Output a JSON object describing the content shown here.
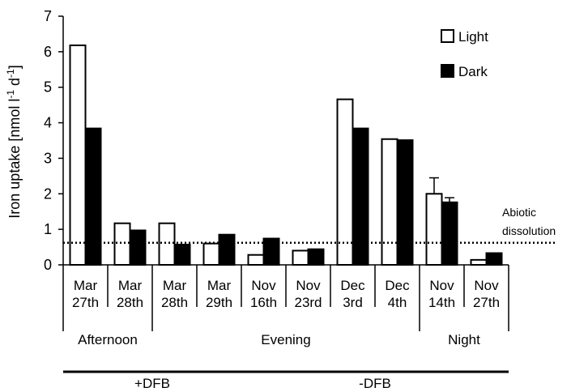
{
  "chart_data": {
    "type": "bar",
    "ylabel": "Iron uptake [nmol l",
    "ylabel_unit_tail": "-1",
    "ylabel_d": " d",
    "ylabel_tail": "]",
    "ylim": [
      0,
      7
    ],
    "yticks": [
      "0",
      "1",
      "2",
      "3",
      "4",
      "5",
      "6",
      "7"
    ],
    "categories": [
      [
        "Mar",
        "27th"
      ],
      [
        "Mar",
        "28th"
      ],
      [
        "Mar",
        "28th"
      ],
      [
        "Mar",
        "29th"
      ],
      [
        "Nov",
        "16th"
      ],
      [
        "Nov",
        "23rd"
      ],
      [
        "Dec",
        "3rd"
      ],
      [
        "Dec",
        "4th"
      ],
      [
        "Nov",
        "14th"
      ],
      [
        "Nov",
        "27th"
      ]
    ],
    "series": [
      {
        "name": "Light",
        "color": "#ffffff",
        "values": [
          6.18,
          1.17,
          1.17,
          0.6,
          0.28,
          0.4,
          4.66,
          3.54,
          2.0,
          0.14
        ],
        "errors": [
          null,
          null,
          null,
          null,
          null,
          null,
          null,
          null,
          0.45,
          null
        ]
      },
      {
        "name": "Dark",
        "color": "#000000",
        "values": [
          3.84,
          0.97,
          0.57,
          0.85,
          0.74,
          0.44,
          3.84,
          3.51,
          1.76,
          0.33
        ],
        "errors": [
          null,
          null,
          null,
          null,
          null,
          null,
          null,
          null,
          0.13,
          null
        ]
      }
    ],
    "time_groups": [
      {
        "label": "Afternoon",
        "from": 0,
        "to": 1
      },
      {
        "label": "Evening",
        "from": 2,
        "to": 7
      },
      {
        "label": "Night",
        "from": 8,
        "to": 9
      }
    ],
    "treatment_groups": [
      {
        "label": "+DFB",
        "from": 0,
        "to": 3
      },
      {
        "label": "-DFB",
        "from": 4,
        "to": 9
      }
    ],
    "reference_line": {
      "value": 0.62,
      "label_line1": "Abiotic",
      "label_line2": "dissolution"
    },
    "legend": "top-right",
    "grid": false
  }
}
